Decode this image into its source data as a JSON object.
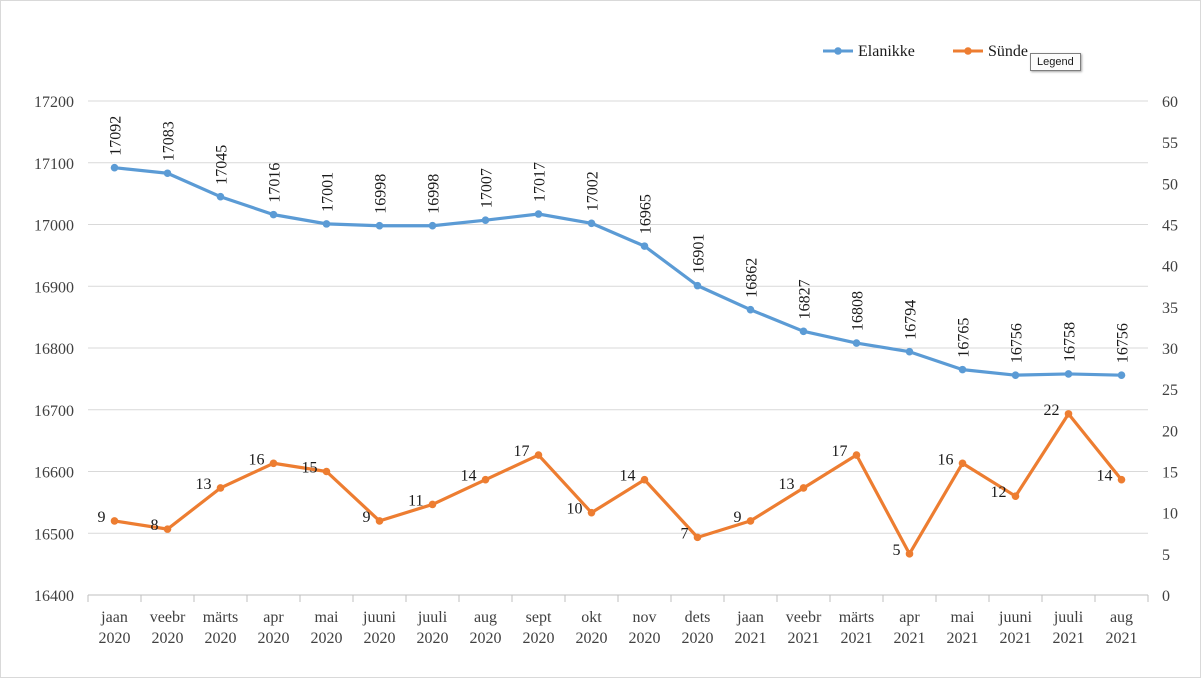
{
  "chart_data": {
    "type": "line",
    "categories": [
      [
        "jaan",
        "2020"
      ],
      [
        "veebr",
        "2020"
      ],
      [
        "märts",
        "2020"
      ],
      [
        "apr",
        "2020"
      ],
      [
        "mai",
        "2020"
      ],
      [
        "juuni",
        "2020"
      ],
      [
        "juuli",
        "2020"
      ],
      [
        "aug",
        "2020"
      ],
      [
        "sept",
        "2020"
      ],
      [
        "okt",
        "2020"
      ],
      [
        "nov",
        "2020"
      ],
      [
        "dets",
        "2020"
      ],
      [
        "jaan",
        "2021"
      ],
      [
        "veebr",
        "2021"
      ],
      [
        "märts",
        "2021"
      ],
      [
        "apr",
        "2021"
      ],
      [
        "mai",
        "2021"
      ],
      [
        "juuni",
        "2021"
      ],
      [
        "juuli",
        "2021"
      ],
      [
        "aug",
        "2021"
      ]
    ],
    "series": [
      {
        "name": "Elanikke",
        "axis": "left",
        "color": "#5b9bd5",
        "values": [
          17092,
          17083,
          17045,
          17016,
          17001,
          16998,
          16998,
          17007,
          17017,
          17002,
          16965,
          16901,
          16862,
          16827,
          16808,
          16794,
          16765,
          16756,
          16758,
          16756
        ]
      },
      {
        "name": "Sünde",
        "axis": "right",
        "color": "#ed7d31",
        "values": [
          9,
          8,
          13,
          16,
          15,
          9,
          11,
          14,
          17,
          10,
          14,
          7,
          9,
          13,
          17,
          5,
          16,
          12,
          22,
          14
        ]
      }
    ],
    "y_left": {
      "min": 16400,
      "max": 17200,
      "step": 100
    },
    "y_right": {
      "min": 0,
      "max": 60,
      "step": 5
    },
    "grid": true,
    "legend_position": "top-right"
  },
  "tooltip": {
    "text": "Legend"
  }
}
